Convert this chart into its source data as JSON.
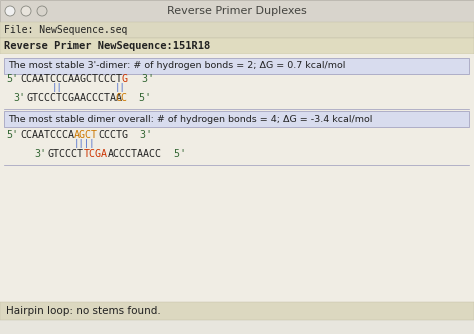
{
  "title": "Reverse Primer Duplexes",
  "titlebar_bg": "#d8d4cc",
  "fig_bg": "#e8e6de",
  "file_label": "File: NewSequence.seq",
  "file_bg": "#dcd8c0",
  "primer_label": "Reverse Primer NewSequence:151R18",
  "primer_bg": "#e0dcc0",
  "section1_header": "The most stable 3'-dimer: # of hydrogen bonds = 2; ΔG = 0.7 kcal/mol",
  "section2_header": "The most stable dimer overall: # of hydrogen bonds = 4; ΔG = -3.4 kcal/mol",
  "section_bg": "#d8dcee",
  "section_border": "#9999bb",
  "hairpin_label": "Hairpin loop: no stems found.",
  "hairpin_bg": "#dcd8c0",
  "content_bg": "#f0ede4",
  "btn_colors": [
    "#e0e0e0",
    "#d8d4cc",
    "#cccccc"
  ],
  "text_dark": "#222222",
  "text_blue": "#336699",
  "text_green": "#336633",
  "text_red": "#cc3300",
  "text_orange": "#cc7700",
  "bond_color": "#4466cc"
}
